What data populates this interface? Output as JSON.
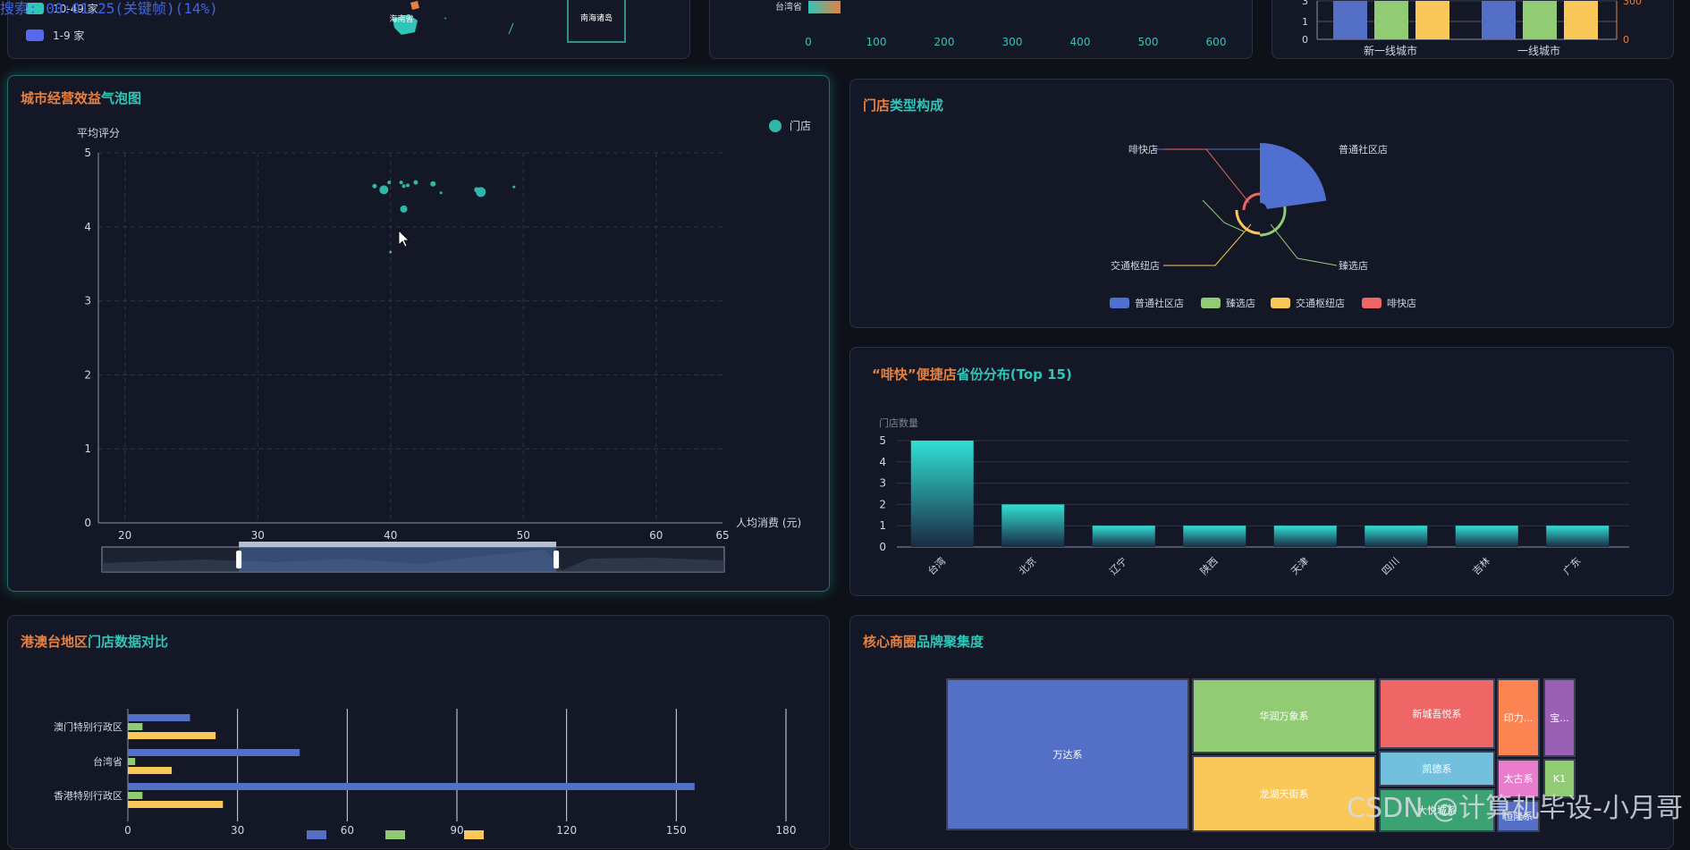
{
  "overlay": {
    "status": "搜索: 00:01:25(关键帧)(14%)",
    "watermark": "CSDN @计算机毕设-小月哥"
  },
  "top_left": {
    "legend": [
      {
        "label": "10-49 家",
        "color": "#2fc5b9"
      },
      {
        "label": "1-9 家",
        "color": "#5668f0"
      }
    ],
    "map_labels": [
      "海南省",
      "南海诸岛"
    ]
  },
  "top_mid": {
    "visual_label": "台湾省",
    "ticks": [
      "0",
      "100",
      "200",
      "300",
      "400",
      "500",
      "600"
    ]
  },
  "top_right": {
    "categories": [
      "新一线城市",
      "一线城市"
    ],
    "left_ticks": [
      "3",
      "2",
      "1",
      "0"
    ],
    "right_ticks": [
      "300",
      "0"
    ]
  },
  "bubble": {
    "title_a": "城市经营效益",
    "title_b": "气泡图",
    "legend": "门店",
    "chart_data": {
      "type": "scatter",
      "xlabel": "人均消费 (元)",
      "ylabel": "平均评分",
      "xlim": [
        18,
        65
      ],
      "ylim": [
        0,
        5
      ],
      "xticks": [
        20,
        30,
        40,
        50,
        60,
        65
      ],
      "yticks": [
        0,
        1,
        2,
        3,
        4,
        5
      ],
      "points": [
        {
          "x": 39.5,
          "y": 4.5,
          "r": 5
        },
        {
          "x": 38.8,
          "y": 4.55,
          "r": 2.5
        },
        {
          "x": 39.9,
          "y": 4.6,
          "r": 2
        },
        {
          "x": 40.8,
          "y": 4.6,
          "r": 2
        },
        {
          "x": 41.3,
          "y": 4.56,
          "r": 2
        },
        {
          "x": 41.9,
          "y": 4.6,
          "r": 2.5
        },
        {
          "x": 41.0,
          "y": 4.55,
          "r": 2
        },
        {
          "x": 43.2,
          "y": 4.58,
          "r": 3
        },
        {
          "x": 43.8,
          "y": 4.46,
          "r": 1.5
        },
        {
          "x": 46.8,
          "y": 4.47,
          "r": 5.5
        },
        {
          "x": 46.5,
          "y": 4.5,
          "r": 3
        },
        {
          "x": 49.3,
          "y": 4.54,
          "r": 1.5
        },
        {
          "x": 41.0,
          "y": 4.24,
          "r": 4
        },
        {
          "x": 40.0,
          "y": 3.66,
          "r": 1.5
        }
      ],
      "zoom": {
        "start": 0.22,
        "end": 0.73
      }
    }
  },
  "pie": {
    "title_a": "门店",
    "title_b": "类型构成",
    "chart_data": {
      "type": "pie",
      "slices": [
        {
          "name": "普通社区店",
          "value": 88,
          "color": "#4f70d0"
        },
        {
          "name": "臻选店",
          "value": 5,
          "color": "#91cc75"
        },
        {
          "name": "交通枢纽店",
          "value": 4,
          "color": "#f9c858"
        },
        {
          "name": "啡快店",
          "value": 3,
          "color": "#ee6666"
        }
      ]
    }
  },
  "provbar": {
    "title_a": "“啡快”便捷店",
    "title_b": "省份分布(Top 15)",
    "chart_data": {
      "type": "bar",
      "ylabel": "门店数量",
      "ylim": [
        0,
        5
      ],
      "yticks": [
        0,
        1,
        2,
        3,
        4,
        5
      ],
      "categories": [
        "台湾",
        "北京",
        "辽宁",
        "陕西",
        "天津",
        "四川",
        "吉林",
        "广东"
      ],
      "values": [
        5,
        2,
        1,
        1,
        1,
        1,
        1,
        1
      ]
    }
  },
  "hmt": {
    "title_a": "港澳台地区",
    "title_b": "门店数据对比",
    "chart_data": {
      "type": "bar",
      "orientation": "horizontal",
      "xlim": [
        0,
        180
      ],
      "xticks": [
        0,
        30,
        60,
        90,
        120,
        150,
        180
      ],
      "categories": [
        "香港特别行政区",
        "台湾省",
        "澳门特别行政区"
      ],
      "series": [
        {
          "values": [
            155,
            47,
            17
          ],
          "color": "#5470c6"
        },
        {
          "values": [
            4,
            2,
            4
          ],
          "color": "#91cc75"
        },
        {
          "values": [
            26,
            12,
            24
          ],
          "color": "#fac858"
        }
      ]
    }
  },
  "treemap": {
    "title_a": "核心商圈",
    "title_b": "品牌聚集度",
    "chart_data": {
      "type": "treemap",
      "items": [
        {
          "name": "万达系",
          "color": "#5470c6"
        },
        {
          "name": "华润万象系",
          "color": "#91cc75"
        },
        {
          "name": "龙湖天街系",
          "color": "#fac858"
        },
        {
          "name": "新城吾悦系",
          "color": "#ee6666"
        },
        {
          "name": "凯德系",
          "color": "#73c0de"
        },
        {
          "name": "大悦城系",
          "color": "#3ba272"
        },
        {
          "name": "印力...",
          "color": "#fc8452"
        },
        {
          "name": "太古系",
          "color": "#ea7ccc"
        },
        {
          "name": "恒隆系",
          "color": "#5470c6"
        },
        {
          "name": "宝...",
          "color": "#9a60b4"
        },
        {
          "name": "K1",
          "color": "#91cc75"
        }
      ]
    }
  }
}
